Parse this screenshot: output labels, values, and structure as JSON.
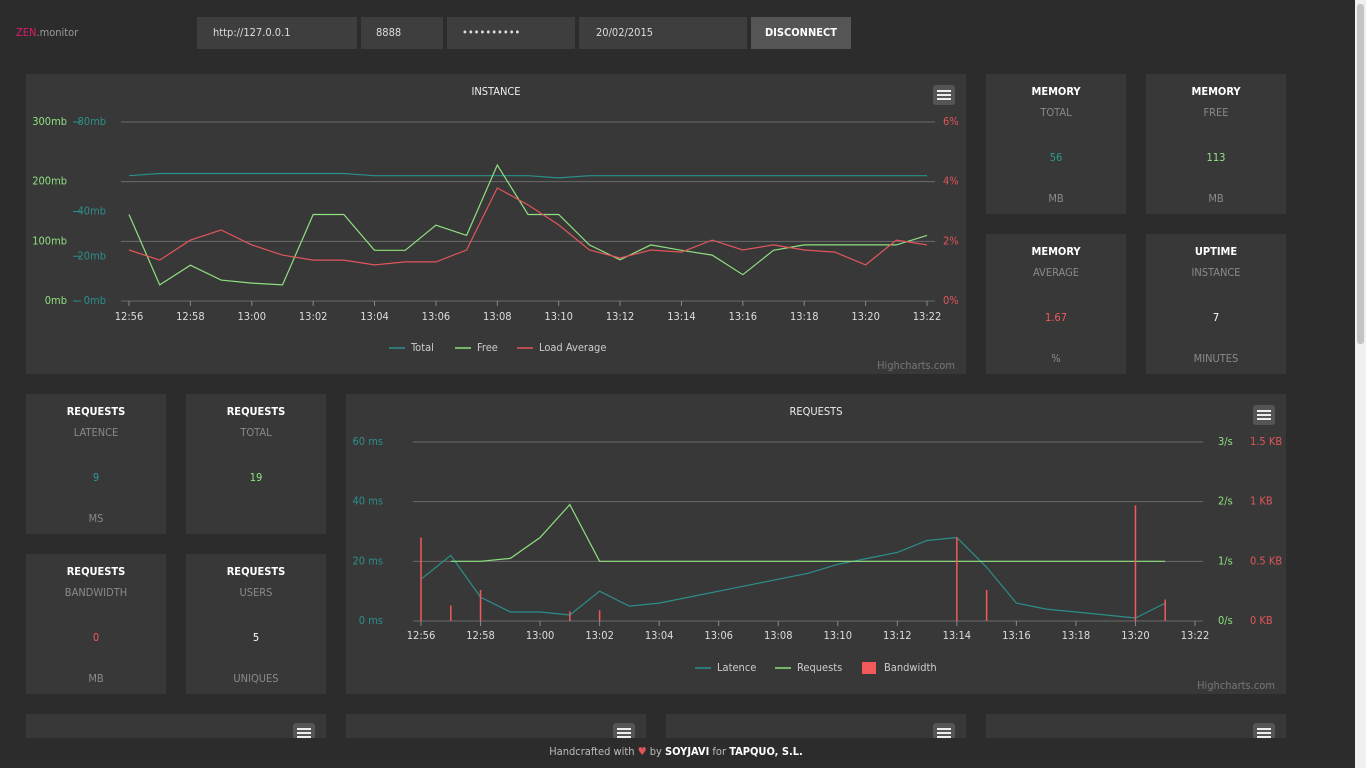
{
  "header": {
    "logo_a": "ZEN",
    "logo_b": ".monitor",
    "host": "http://127.0.0.1",
    "port": "8888",
    "password": "••••••••••",
    "date": "20/02/2015",
    "button": "DISCONNECT"
  },
  "instance_chart": {
    "type": "line",
    "title": "INSTANCE",
    "credit": "Highcharts.com",
    "x": [
      "12:56",
      "12:57",
      "12:58",
      "12:59",
      "13:00",
      "13:01",
      "13:02",
      "13:03",
      "13:04",
      "13:05",
      "13:06",
      "13:07",
      "13:08",
      "13:09",
      "13:10",
      "13:11",
      "13:12",
      "13:13",
      "13:14",
      "13:15",
      "13:16",
      "13:17",
      "13:18",
      "13:19",
      "13:20",
      "13:21",
      "13:22"
    ],
    "xticks": [
      "12:56",
      "12:58",
      "13:00",
      "13:02",
      "13:04",
      "13:06",
      "13:08",
      "13:10",
      "13:12",
      "13:14",
      "13:16",
      "13:18",
      "13:20",
      "13:22"
    ],
    "ylim": [
      0,
      300
    ],
    "yticks": [
      {
        "value": 0,
        "label": "0mb"
      },
      {
        "value": 100,
        "label": "100mb"
      },
      {
        "value": 200,
        "label": "200mb"
      },
      {
        "value": 300,
        "label": "300mb"
      }
    ],
    "y2lim": [
      0,
      80
    ],
    "y2ticks": [
      {
        "value": 0,
        "label": "0mb"
      },
      {
        "value": 20,
        "label": "20mb"
      },
      {
        "value": 40,
        "label": "40mb"
      },
      {
        "value": 80,
        "label": "80mb"
      }
    ],
    "y3lim": [
      0,
      6
    ],
    "y3ticks": [
      {
        "value": 0,
        "label": "0%"
      },
      {
        "value": 2,
        "label": "2%"
      },
      {
        "value": 4,
        "label": "4%"
      },
      {
        "value": 6,
        "label": "6%"
      }
    ],
    "grid": true,
    "series": [
      {
        "name": "Total",
        "color": "#2b8f8a",
        "axis": "y2",
        "values": [
          56,
          57,
          57,
          57,
          57,
          57,
          57,
          57,
          56,
          56,
          56,
          56,
          56,
          56,
          55,
          56,
          56,
          56,
          56,
          56,
          56,
          56,
          56,
          56,
          56,
          56,
          56
        ]
      },
      {
        "name": "Free",
        "color": "#8ee07f",
        "axis": "y",
        "values": [
          145,
          27,
          60,
          35,
          30,
          27,
          145,
          145,
          85,
          85,
          127,
          110,
          228,
          145,
          145,
          94,
          69,
          94,
          85,
          77,
          44,
          85,
          94,
          94,
          94,
          94,
          110
        ]
      },
      {
        "name": "Load Average",
        "color": "#e0565a",
        "axis": "y3",
        "values": [
          1.71,
          1.37,
          2.04,
          2.38,
          1.88,
          1.54,
          1.37,
          1.37,
          1.21,
          1.31,
          1.31,
          1.71,
          3.79,
          3.22,
          2.55,
          1.71,
          1.44,
          1.71,
          1.64,
          2.04,
          1.71,
          1.88,
          1.71,
          1.64,
          1.21,
          2.04,
          1.88
        ]
      }
    ]
  },
  "requests_chart": {
    "type": "line",
    "title": "REQUESTS",
    "credit": "Highcharts.com",
    "x": [
      "12:56",
      "12:57",
      "12:58",
      "12:59",
      "13:00",
      "13:01",
      "13:02",
      "13:03",
      "13:04",
      "13:05",
      "13:06",
      "13:07",
      "13:08",
      "13:09",
      "13:10",
      "13:11",
      "13:12",
      "13:13",
      "13:14",
      "13:15",
      "13:16",
      "13:17",
      "13:18",
      "13:19",
      "13:20",
      "13:21",
      "13:22"
    ],
    "xticks": [
      "12:56",
      "12:58",
      "13:00",
      "13:02",
      "13:04",
      "13:06",
      "13:08",
      "13:10",
      "13:12",
      "13:14",
      "13:16",
      "13:18",
      "13:20",
      "13:22"
    ],
    "ylim": [
      0,
      60
    ],
    "yticks": [
      {
        "value": 0,
        "label": "0 ms"
      },
      {
        "value": 20,
        "label": "20 ms"
      },
      {
        "value": 40,
        "label": "40 ms"
      },
      {
        "value": 60,
        "label": "60 ms"
      }
    ],
    "y2lim": [
      0,
      3
    ],
    "y2ticks": [
      {
        "value": 0,
        "label": "0/s"
      },
      {
        "value": 1,
        "label": "1/s"
      },
      {
        "value": 2,
        "label": "2/s"
      },
      {
        "value": 3,
        "label": "3/s"
      }
    ],
    "y3lim": [
      0,
      1.5
    ],
    "y3ticks": [
      {
        "value": 0,
        "label": "0 KB"
      },
      {
        "value": 0.5,
        "label": "0.5 KB"
      },
      {
        "value": 1,
        "label": "1 KB"
      },
      {
        "value": 1.5,
        "label": "1.5 KB"
      }
    ],
    "grid": true,
    "series": [
      {
        "name": "Latence",
        "color": "#2b8f8a",
        "axis": "y",
        "type": "line",
        "values": [
          14,
          22,
          8,
          3,
          3,
          2,
          10,
          5,
          6,
          8,
          10,
          12,
          14,
          16,
          19,
          21,
          23,
          27,
          28,
          18,
          6,
          4,
          3,
          2,
          1,
          6,
          null
        ]
      },
      {
        "name": "Requests",
        "color": "#8ee07f",
        "axis": "y2",
        "type": "line",
        "values": [
          null,
          1,
          1,
          1.05,
          1.4,
          1.95,
          1,
          1,
          1,
          1,
          1,
          1,
          1,
          1,
          1,
          1,
          1,
          1,
          1,
          1,
          1,
          1,
          1,
          1,
          1,
          1,
          null
        ]
      },
      {
        "name": "Bandwidth",
        "color": "#f05a5a",
        "axis": "y3",
        "type": "column",
        "values": [
          0.7,
          0.13,
          0.26,
          null,
          null,
          0.08,
          0.09,
          null,
          null,
          null,
          null,
          null,
          null,
          null,
          null,
          null,
          null,
          null,
          0.7,
          0.26,
          null,
          null,
          null,
          null,
          0.97,
          0.18,
          null
        ]
      }
    ]
  },
  "tiles": [
    {
      "title": "MEMORY",
      "subtitle": "TOTAL",
      "value": 56,
      "unit": "MB",
      "color": "#2e9a94"
    },
    {
      "title": "MEMORY",
      "subtitle": "FREE",
      "value": 113,
      "unit": "MB",
      "color": "#8fe684"
    },
    {
      "title": "MEMORY",
      "subtitle": "AVERAGE",
      "value": 1.67,
      "unit": "%",
      "color": "#f05a5a"
    },
    {
      "title": "UPTIME",
      "subtitle": "INSTANCE",
      "value": 7,
      "unit": "MINUTES",
      "color": "#ffffff"
    },
    {
      "title": "REQUESTS",
      "subtitle": "LATENCE",
      "value": 9,
      "unit": "MS",
      "color": "#2e9a94"
    },
    {
      "title": "REQUESTS",
      "subtitle": "TOTAL",
      "value": 19,
      "color": "#8fe684"
    },
    {
      "title": "REQUESTS",
      "subtitle": "BANDWIDTH",
      "value": 0,
      "unit": "MB",
      "color": "#f05a5a"
    },
    {
      "title": "REQUESTS",
      "subtitle": "USERS",
      "value": 5,
      "unit": "UNIQUES",
      "color": "#ffffff"
    }
  ],
  "footer": {
    "a": "Handcrafted with",
    "b": "by",
    "c": "SOYJAVI",
    "d": "for",
    "e": "TAPQUO, S.L."
  }
}
